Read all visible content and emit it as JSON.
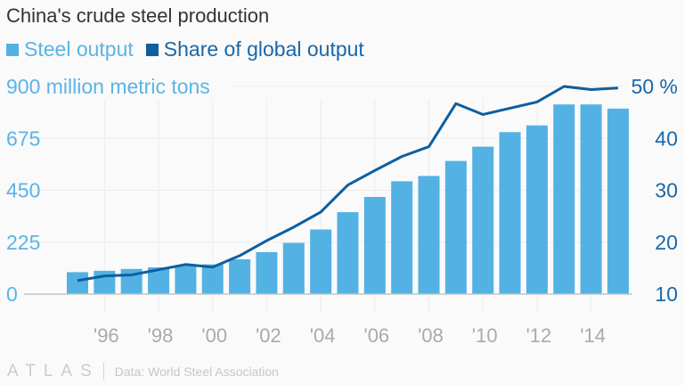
{
  "title": "China's crude steel production",
  "legend": [
    {
      "label": "Steel output",
      "color": "#53b1e4"
    },
    {
      "label": "Share of global output",
      "color": "#0d5fa0"
    }
  ],
  "footer": {
    "logo": "ATLAS",
    "source": "Data: World Steel Association"
  },
  "chart_data": {
    "type": "bar+line",
    "title": "China's crude steel production",
    "x": [
      1995,
      1996,
      1997,
      1998,
      1999,
      2000,
      2001,
      2002,
      2003,
      2004,
      2005,
      2006,
      2007,
      2008,
      2009,
      2010,
      2011,
      2012,
      2013,
      2014,
      2015
    ],
    "xticks": [
      1996,
      1998,
      2000,
      2002,
      2004,
      2006,
      2008,
      2010,
      2012,
      2014
    ],
    "xtick_labels": [
      "'96",
      "'98",
      "'00",
      "'02",
      "'04",
      "'06",
      "'08",
      "'10",
      "'12",
      "'14"
    ],
    "left_axis": {
      "label": "900 million metric tons",
      "ticks": [
        0,
        225,
        450,
        675,
        900
      ],
      "tick_labels": [
        "0",
        "225",
        "450",
        "675",
        "900 million metric tons"
      ],
      "range": [
        0,
        900
      ],
      "color": "#5ab4e5"
    },
    "right_axis": {
      "ticks": [
        10,
        20,
        30,
        40,
        50
      ],
      "tick_labels": [
        "10",
        "20",
        "30",
        "40",
        "50 %"
      ],
      "range": [
        10,
        50
      ],
      "color": "#1a67a8"
    },
    "grid": true,
    "legend_position": "top-left",
    "series": [
      {
        "name": "Steel output",
        "type": "bar",
        "axis": "left",
        "color": "#53b1e4",
        "values": [
          95,
          101,
          109,
          116,
          124,
          129,
          151,
          182,
          222,
          280,
          355,
          421,
          489,
          512,
          577,
          639,
          702,
          731,
          822,
          822,
          804
        ]
      },
      {
        "name": "Share of global output",
        "type": "line",
        "axis": "right",
        "color": "#0d5fa0",
        "values": [
          12.6,
          13.5,
          13.7,
          14.7,
          15.7,
          15.2,
          17.4,
          20.3,
          22.9,
          25.8,
          31.0,
          33.8,
          36.5,
          38.4,
          46.7,
          44.6,
          45.8,
          47.0,
          50.0,
          49.4,
          49.7
        ]
      }
    ]
  }
}
